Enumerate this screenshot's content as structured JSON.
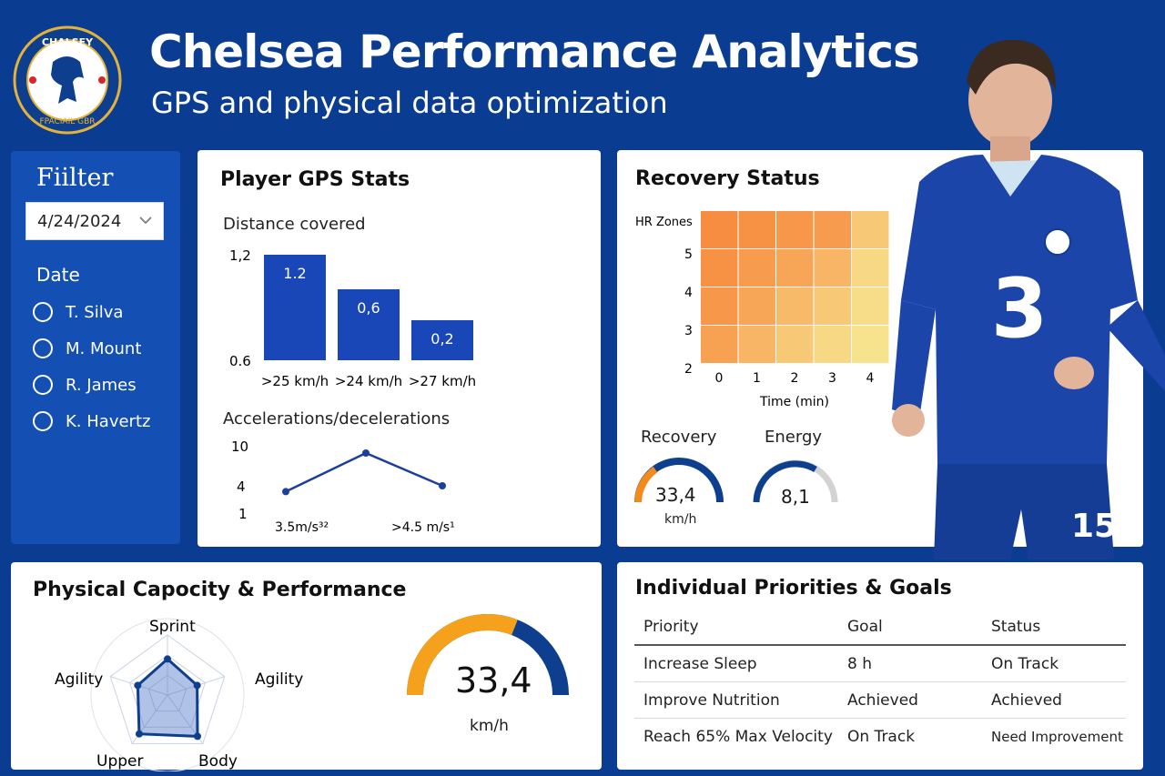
{
  "header": {
    "title": "Chelsea Performance Analytics",
    "subtitle": "GPS and physical data optimization",
    "logo_text_top": "CHALSEY",
    "logo_text_bottom": "FPACIAIL GBR"
  },
  "filter": {
    "title": "Fiilter",
    "date_value": "4/24/2024",
    "date_label": "Date",
    "players": [
      "T. Silva",
      "M. Mount",
      "R. James",
      "K. Havertz"
    ]
  },
  "gps": {
    "title": "Player GPS Stats",
    "distance_label": "Distance covered",
    "accel_label": "Accelerations/decelerations"
  },
  "recovery": {
    "title": "Recovery Status",
    "recovery_label": "Recovery",
    "recovery_value": "33,4",
    "recovery_unit": "km/h",
    "energy_label": "Energy",
    "energy_value": "8,1"
  },
  "physical": {
    "title": "Physical Capocity & Performance",
    "gauge_value": "33,4",
    "gauge_unit": "km/h",
    "gauge_fill": 0.62
  },
  "priorities": {
    "title": "Individual Priorities & Goals",
    "headers": [
      "Priority",
      "Goal",
      "Status"
    ],
    "rows": [
      [
        "Increase Sleep",
        "8 h",
        "On Track"
      ],
      [
        "Improve Nutrition",
        "Achieved",
        "Achieved"
      ],
      [
        "Reach 65% Max Velocity",
        "On Track",
        "Need Improvement"
      ]
    ]
  },
  "player_photo": {
    "shirt_number": "15"
  },
  "colors": {
    "background": "#0a3d91",
    "bar": "#1a47b8",
    "orange": "#f5a11c",
    "navy": "#0e3f8f"
  },
  "chart_data": [
    {
      "type": "bar",
      "title": "Distance covered",
      "categories": [
        ">25 km/h",
        ">24 km/h",
        ">27 km/h"
      ],
      "values": [
        1.2,
        0.6,
        0.2
      ],
      "data_labels": [
        "1.2",
        "0,6",
        "0,2"
      ],
      "ytick_labels": [
        "1,2",
        "0.6"
      ]
    },
    {
      "type": "line",
      "title": "Accelerations/decelerations",
      "x": [
        "3.5m/s²",
        "",
        ">4.5 m/s²"
      ],
      "x_tick_labels": [
        "3.5m/s³²",
        ">4.5 m/s¹"
      ],
      "values": [
        4.2,
        9.5,
        5
      ],
      "yticks": [
        "10",
        "4",
        "1"
      ],
      "ylim": [
        1,
        10
      ]
    },
    {
      "type": "heatmap",
      "title": "Recovery Status",
      "xlabel": "Time (min)",
      "ylabel": "HR Zones",
      "x": [
        0,
        1,
        2,
        3,
        4
      ],
      "y": [
        5,
        4,
        3,
        2
      ],
      "ytick_labels": [
        "5",
        "4",
        "3",
        "2"
      ],
      "values": [
        [
          0.95,
          0.9,
          0.85,
          0.8,
          0.35
        ],
        [
          0.9,
          0.8,
          0.7,
          0.55,
          0.2
        ],
        [
          0.85,
          0.7,
          0.5,
          0.35,
          0.15
        ],
        [
          0.75,
          0.55,
          0.35,
          0.2,
          0.1
        ]
      ]
    },
    {
      "type": "radar",
      "axes": [
        "Sprint",
        "Agility",
        "Body",
        "Upper",
        "Agility"
      ],
      "values": [
        0.6,
        0.52,
        0.85,
        0.8,
        0.52
      ],
      "rlim": [
        0,
        1
      ]
    }
  ]
}
